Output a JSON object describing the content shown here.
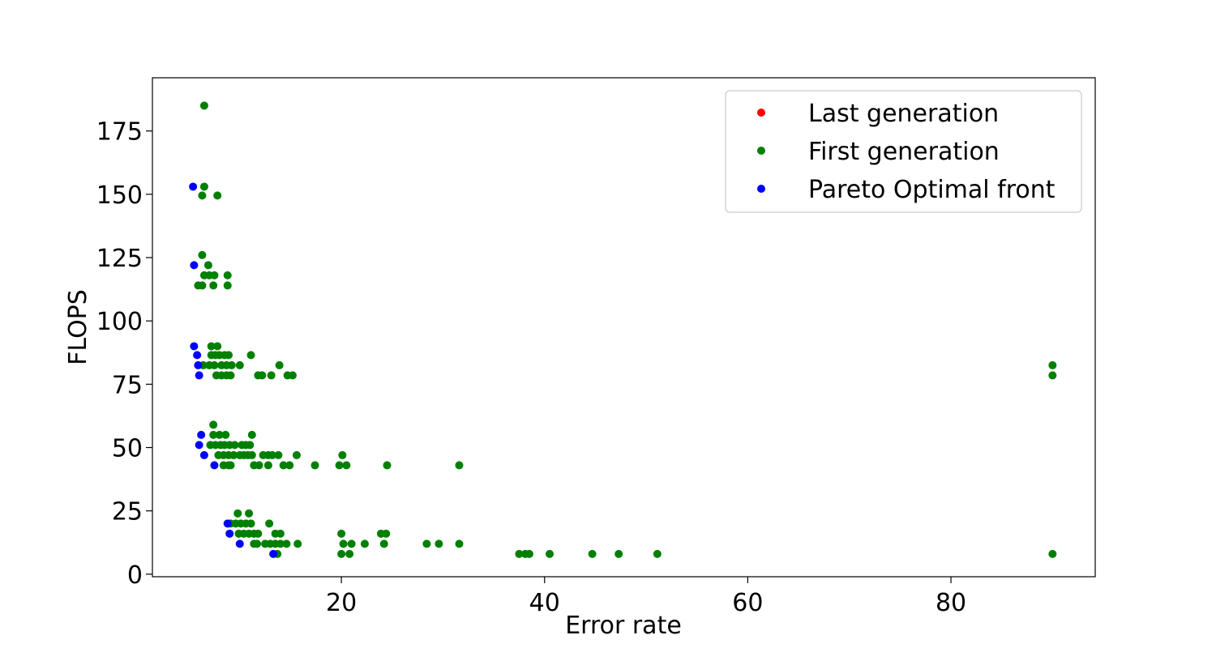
{
  "chart_data": {
    "type": "scatter",
    "title": "",
    "xlabel": "Error rate",
    "ylabel": "FLOPS",
    "xlim": [
      1.4,
      94.2
    ],
    "ylim": [
      -1,
      196
    ],
    "xticks": [
      20,
      40,
      60,
      80
    ],
    "yticks": [
      0,
      25,
      50,
      75,
      100,
      125,
      150,
      175
    ],
    "legend_position": "top-right",
    "grid": false,
    "series": [
      {
        "name": "Last generation",
        "color": "#ff0000",
        "points": []
      },
      {
        "name": "First generation",
        "color": "#008000",
        "points": [
          [
            6.5,
            185
          ],
          [
            6.5,
            153
          ],
          [
            6.3,
            149.5
          ],
          [
            7.8,
            149.5
          ],
          [
            6.3,
            126
          ],
          [
            6.9,
            122
          ],
          [
            6.5,
            118
          ],
          [
            7.0,
            118
          ],
          [
            7.5,
            118
          ],
          [
            8.8,
            118
          ],
          [
            5.9,
            114
          ],
          [
            6.3,
            114
          ],
          [
            7.4,
            114
          ],
          [
            8.8,
            114
          ],
          [
            7.2,
            90
          ],
          [
            7.8,
            90
          ],
          [
            7.2,
            86.5
          ],
          [
            7.6,
            86.5
          ],
          [
            8.0,
            86.5
          ],
          [
            8.5,
            86.5
          ],
          [
            8.9,
            86.5
          ],
          [
            11.1,
            86.5
          ],
          [
            6.4,
            82.5
          ],
          [
            7.0,
            82.5
          ],
          [
            7.5,
            82.5
          ],
          [
            8.2,
            82.5
          ],
          [
            8.7,
            82.5
          ],
          [
            9.2,
            82.5
          ],
          [
            10.0,
            82.5
          ],
          [
            13.9,
            82.5
          ],
          [
            90.0,
            82.5
          ],
          [
            7.7,
            78.5
          ],
          [
            8.2,
            78.5
          ],
          [
            8.7,
            78.5
          ],
          [
            9.1,
            78.5
          ],
          [
            11.8,
            78.5
          ],
          [
            12.2,
            78.5
          ],
          [
            13.1,
            78.5
          ],
          [
            14.7,
            78.5
          ],
          [
            15.2,
            78.5
          ],
          [
            90.0,
            78.5
          ],
          [
            7.4,
            59
          ],
          [
            7.4,
            55
          ],
          [
            8.0,
            55
          ],
          [
            8.6,
            55
          ],
          [
            11.2,
            55
          ],
          [
            7.1,
            51
          ],
          [
            7.6,
            51
          ],
          [
            8.1,
            51
          ],
          [
            8.5,
            51
          ],
          [
            9.0,
            51
          ],
          [
            9.5,
            51
          ],
          [
            10.2,
            51
          ],
          [
            10.6,
            51
          ],
          [
            11.0,
            51
          ],
          [
            7.9,
            47
          ],
          [
            8.4,
            47
          ],
          [
            8.9,
            47
          ],
          [
            9.4,
            47
          ],
          [
            10.0,
            47
          ],
          [
            10.4,
            47
          ],
          [
            10.8,
            47
          ],
          [
            11.2,
            47
          ],
          [
            12.3,
            47
          ],
          [
            12.8,
            47
          ],
          [
            13.2,
            47
          ],
          [
            13.8,
            47
          ],
          [
            15.6,
            47
          ],
          [
            20.1,
            47
          ],
          [
            8.4,
            43
          ],
          [
            8.9,
            43
          ],
          [
            9.1,
            43
          ],
          [
            11.4,
            43
          ],
          [
            11.9,
            43
          ],
          [
            12.8,
            43
          ],
          [
            14.3,
            43
          ],
          [
            14.9,
            43
          ],
          [
            17.4,
            43
          ],
          [
            19.8,
            43
          ],
          [
            20.5,
            43
          ],
          [
            24.5,
            43
          ],
          [
            31.6,
            43
          ],
          [
            9.8,
            24
          ],
          [
            10.9,
            24
          ],
          [
            9.1,
            20
          ],
          [
            9.6,
            20
          ],
          [
            10.1,
            20
          ],
          [
            10.6,
            20
          ],
          [
            11.1,
            20
          ],
          [
            12.9,
            20
          ],
          [
            9.9,
            16
          ],
          [
            10.4,
            16
          ],
          [
            10.9,
            16
          ],
          [
            11.4,
            16
          ],
          [
            11.8,
            16
          ],
          [
            13.5,
            16
          ],
          [
            14.0,
            16
          ],
          [
            20.0,
            16
          ],
          [
            23.9,
            16
          ],
          [
            24.4,
            16
          ],
          [
            11.4,
            12
          ],
          [
            11.7,
            12
          ],
          [
            12.5,
            12
          ],
          [
            13.0,
            12
          ],
          [
            13.5,
            12
          ],
          [
            14.0,
            12
          ],
          [
            14.6,
            12
          ],
          [
            15.7,
            12
          ],
          [
            20.2,
            12
          ],
          [
            21.0,
            12
          ],
          [
            22.3,
            12
          ],
          [
            24.2,
            12
          ],
          [
            28.4,
            12
          ],
          [
            29.6,
            12
          ],
          [
            31.6,
            12
          ],
          [
            13.7,
            8
          ],
          [
            20.0,
            8
          ],
          [
            20.8,
            8
          ],
          [
            37.5,
            8
          ],
          [
            38.1,
            8
          ],
          [
            38.5,
            8
          ],
          [
            40.5,
            8
          ],
          [
            44.7,
            8
          ],
          [
            47.3,
            8
          ],
          [
            51.1,
            8
          ],
          [
            90.0,
            8
          ]
        ]
      },
      {
        "name": "Pareto Optimal front",
        "color": "#0000ff",
        "points": [
          [
            5.4,
            153
          ],
          [
            5.5,
            122
          ],
          [
            5.5,
            90
          ],
          [
            5.8,
            86.5
          ],
          [
            5.9,
            82.5
          ],
          [
            6.0,
            78.5
          ],
          [
            6.2,
            55
          ],
          [
            6.0,
            51
          ],
          [
            6.5,
            47
          ],
          [
            7.5,
            43
          ],
          [
            8.8,
            20
          ],
          [
            9.0,
            16
          ],
          [
            10.0,
            12
          ],
          [
            13.3,
            8
          ]
        ]
      }
    ]
  }
}
